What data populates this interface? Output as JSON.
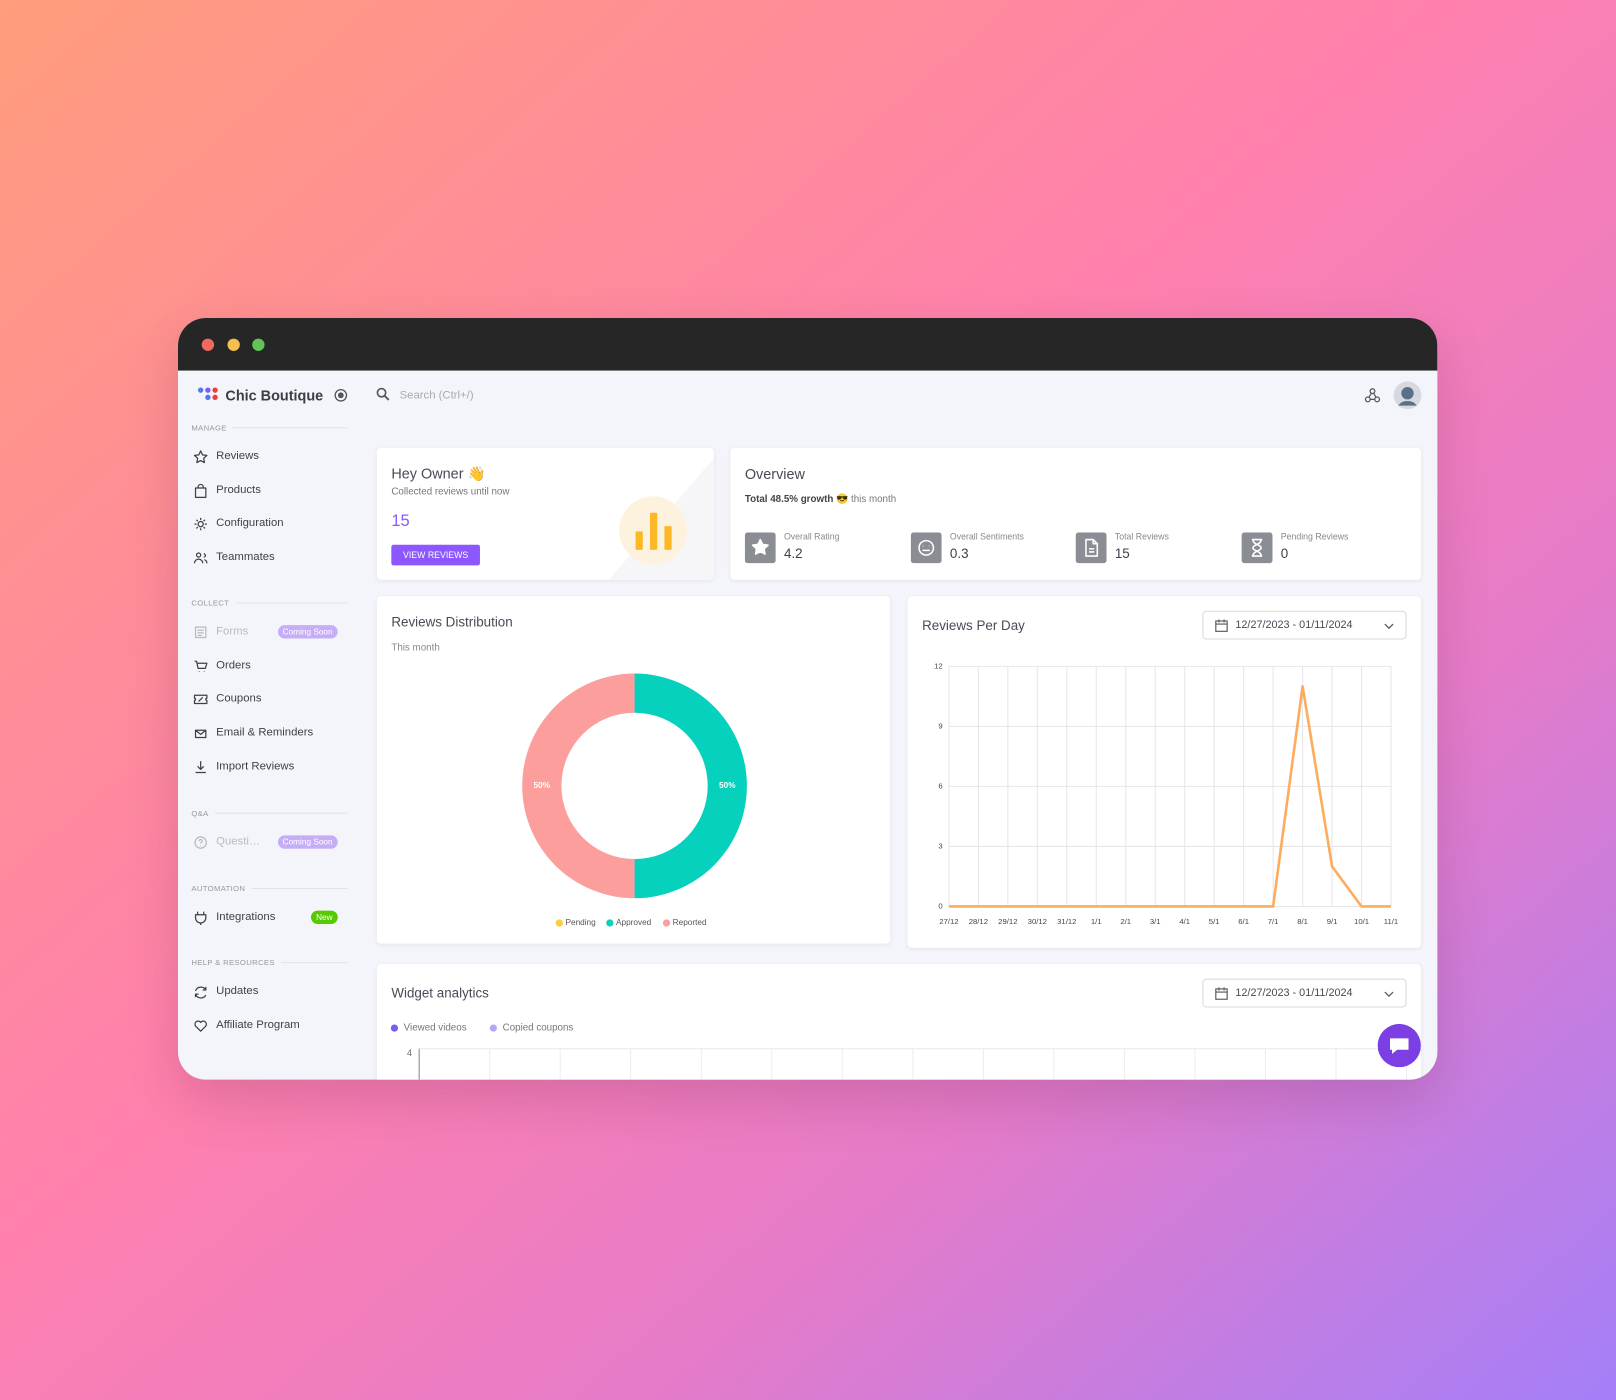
{
  "window": {
    "brand": "Chic Boutique",
    "search_placeholder": "Search (Ctrl+/)"
  },
  "sidebar": [
    {
      "heading": "MANAGE",
      "items": [
        {
          "label": "Reviews"
        },
        {
          "label": "Products"
        },
        {
          "label": "Configuration"
        },
        {
          "label": "Teammates"
        }
      ]
    },
    {
      "heading": "COLLECT",
      "items": [
        {
          "label": "Forms",
          "badge": "Coming Soon",
          "disabled": true
        },
        {
          "label": "Orders"
        },
        {
          "label": "Coupons"
        },
        {
          "label": "Email & Reminders"
        },
        {
          "label": "Import Reviews"
        }
      ]
    },
    {
      "heading": "Q&A",
      "items": [
        {
          "label": "Questi…",
          "badge": "Coming Soon",
          "disabled": true
        }
      ]
    },
    {
      "heading": "AUTOMATION",
      "items": [
        {
          "label": "Integrations",
          "badge": "New"
        }
      ]
    },
    {
      "heading": "HELP & RESOURCES",
      "items": [
        {
          "label": "Updates"
        },
        {
          "label": "Affiliate Program"
        }
      ]
    }
  ],
  "greeting": {
    "title": "Hey Owner 👋",
    "subtitle": "Collected reviews until now",
    "count": 15,
    "button": "VIEW REVIEWS"
  },
  "overview": {
    "title": "Overview",
    "growth": "Total 48.5% growth",
    "growth_emoji": "😎",
    "growth_period": "this month",
    "stats": [
      {
        "label": "Overall Rating",
        "value": 4.2
      },
      {
        "label": "Overall Sentiments",
        "value": 0.3
      },
      {
        "label": "Total Reviews",
        "value": 15
      },
      {
        "label": "Pending Reviews",
        "value": 0
      }
    ]
  },
  "chart_data": [
    {
      "type": "pie",
      "title": "Reviews Distribution",
      "subtitle": "This month",
      "categories": [
        "Pending",
        "Approved",
        "Reported"
      ],
      "values": [
        0,
        50,
        50
      ],
      "value_labels": [
        null,
        "50%",
        "50%"
      ],
      "colors": [
        "#fbcd3f",
        "#05d1bd",
        "#fc9e9b"
      ]
    },
    {
      "type": "line",
      "title": "Reviews Per Day",
      "date_range": "12/27/2023 - 01/11/2024",
      "categories": [
        "27/12",
        "28/12",
        "29/12",
        "30/12",
        "31/12",
        "1/1",
        "2/1",
        "3/1",
        "4/1",
        "5/1",
        "6/1",
        "7/1",
        "8/1",
        "9/1",
        "10/1",
        "11/1"
      ],
      "values": [
        0,
        0,
        0,
        0,
        0,
        0,
        0,
        0,
        0,
        0,
        0,
        0,
        11,
        2,
        0,
        0
      ],
      "color": "#fdab5d",
      "ylim": [
        0,
        12
      ],
      "yticks": [
        0,
        3,
        6,
        9,
        12
      ],
      "grid": true
    },
    {
      "type": "line",
      "title": "Widget analytics",
      "date_range": "12/27/2023 - 01/11/2024",
      "series": [
        {
          "name": "Viewed videos",
          "color": "#7a5af5"
        },
        {
          "name": "Copied coupons",
          "color": "#b9a6f9"
        }
      ],
      "ylim": [
        0,
        4
      ],
      "yticks": [
        4
      ],
      "grid": true
    }
  ]
}
